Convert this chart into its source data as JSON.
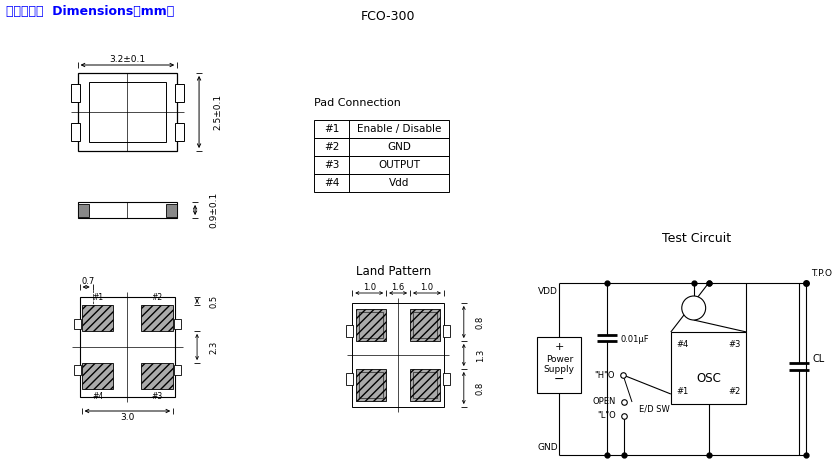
{
  "title_left": "外形寸法図  Dimensions（mm）",
  "title_center": "FCO-300",
  "title_left_color": "#0000ff",
  "bg_color": "#ffffff",
  "pad_connection_title": "Pad Connection",
  "pad_rows": [
    [
      "#1",
      "Enable / Disable"
    ],
    [
      "#2",
      "GND"
    ],
    [
      "#3",
      "OUTPUT"
    ],
    [
      "#4",
      "Vdd"
    ]
  ],
  "test_circuit_title": "Test Circuit",
  "land_pattern_title": "Land Pattern"
}
